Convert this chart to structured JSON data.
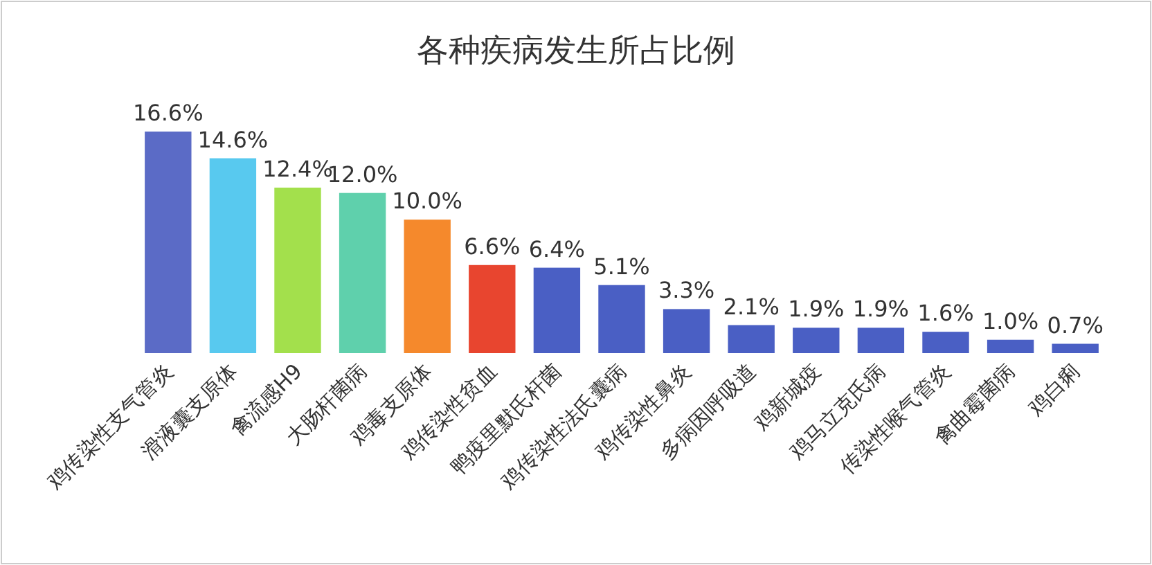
{
  "chart_data": {
    "type": "bar",
    "title": "各种疾病发生所占比例",
    "categories": [
      "鸡传染性支气管炎",
      "滑液囊支原体",
      "禽流感H9",
      "大肠杆菌病",
      "鸡毒支原体",
      "鸡传染性贫血",
      "鸭疫里默氏杆菌",
      "鸡传染性法氏囊病",
      "鸡传染性鼻炎",
      "多病因呼吸道",
      "鸡新城疫",
      "鸡马立克氏病",
      "传染性喉气管炎",
      "禽曲霉菌病",
      "鸡白痢"
    ],
    "values": [
      16.6,
      14.6,
      12.4,
      12.0,
      10.0,
      6.6,
      6.4,
      5.1,
      3.3,
      2.1,
      1.9,
      1.9,
      1.6,
      1.0,
      0.7
    ],
    "value_labels": [
      "16.6%",
      "14.6%",
      "12.4%",
      "12.0%",
      "10.0%",
      "6.6%",
      "6.4%",
      "5.1%",
      "3.3%",
      "2.1%",
      "1.9%",
      "1.9%",
      "1.6%",
      "1.0%",
      "0.7%"
    ],
    "colors": [
      "#5b6bc6",
      "#58c9ef",
      "#a3e04c",
      "#5fd0ac",
      "#f5892c",
      "#e8452f",
      "#4a5fc4",
      "#4a5fc4",
      "#4a5fc4",
      "#4a5fc4",
      "#4a5fc4",
      "#4a5fc4",
      "#4a5fc4",
      "#4a5fc4",
      "#4a5fc4"
    ]
  }
}
